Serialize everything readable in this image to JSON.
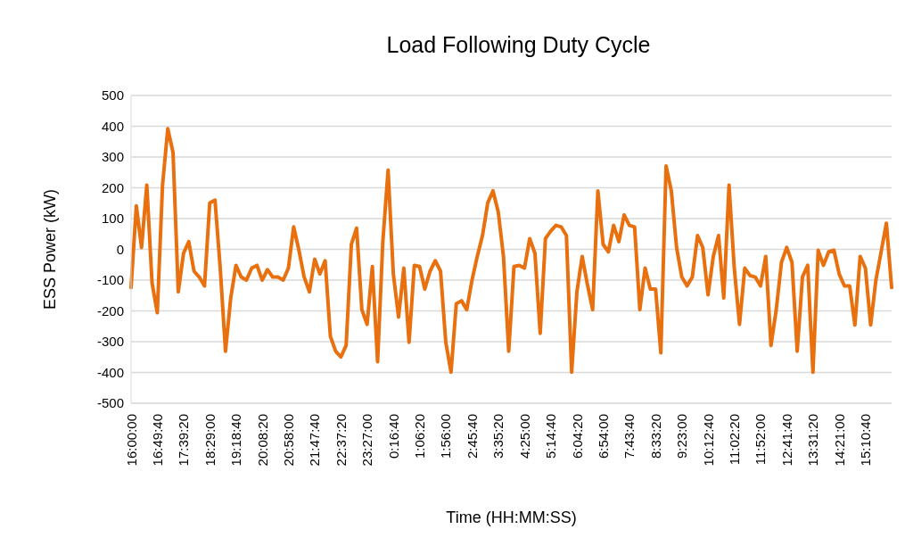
{
  "chart_data": {
    "type": "line",
    "title": "Load Following Duty Cycle",
    "xlabel": "Time (HH:MM:SS)",
    "ylabel": "ESS Power (kW)",
    "categories": [
      "16:00:00",
      null,
      null,
      null,
      null,
      "16:49:40",
      null,
      null,
      null,
      null,
      "17:39:20",
      null,
      null,
      null,
      null,
      "18:29:00",
      null,
      null,
      null,
      null,
      "19:18:40",
      null,
      null,
      null,
      null,
      "20:08:20",
      null,
      null,
      null,
      null,
      "20:58:00",
      null,
      null,
      null,
      null,
      "21:47:40",
      null,
      null,
      null,
      null,
      "22:37:20",
      null,
      null,
      null,
      null,
      "23:27:00",
      null,
      null,
      null,
      null,
      "0:16:40",
      null,
      null,
      null,
      null,
      "1:06:20",
      null,
      null,
      null,
      null,
      "1:56:00",
      null,
      null,
      null,
      null,
      "2:45:40",
      null,
      null,
      null,
      null,
      "3:35:20",
      null,
      null,
      null,
      null,
      "4:25:00",
      null,
      null,
      null,
      null,
      "5:14:40",
      null,
      null,
      null,
      null,
      "6:04:20",
      null,
      null,
      null,
      null,
      "6:54:00",
      null,
      null,
      null,
      null,
      "7:43:40",
      null,
      null,
      null,
      null,
      "8:33:20",
      null,
      null,
      null,
      null,
      "9:23:00",
      null,
      null,
      null,
      null,
      "10:12:40",
      null,
      null,
      null,
      null,
      "11:02:20",
      null,
      null,
      null,
      null,
      "11:52:00",
      null,
      null,
      null,
      null,
      "12:41:40",
      null,
      null,
      null,
      null,
      "13:31:20",
      null,
      null,
      null,
      null,
      "14:21:00",
      null,
      null,
      null,
      null,
      "15:10:40",
      null,
      null,
      null,
      null,
      null
    ],
    "series": [
      {
        "color": "#e8700e",
        "values": [
          -124,
          141,
          6,
          209,
          -109,
          -206,
          209,
          392,
          315,
          -138,
          -13,
          25,
          -71,
          -90,
          -119,
          151,
          160,
          -61,
          -331,
          -158,
          -52,
          -90,
          -100,
          -61,
          -52,
          -100,
          -66,
          -90,
          -90,
          -100,
          -61,
          73,
          -3,
          -90,
          -138,
          -32,
          -80,
          -37,
          -283,
          -331,
          -350,
          -312,
          16,
          69,
          -196,
          -244,
          -56,
          -365,
          25,
          257,
          -80,
          -220,
          -61,
          -302,
          -52,
          -56,
          -129,
          -71,
          -37,
          -71,
          -302,
          -399,
          -177,
          -167,
          -196,
          -100,
          -23,
          45,
          151,
          190,
          122,
          -23,
          -331,
          -56,
          -52,
          -61,
          35,
          -13,
          -273,
          35,
          59,
          78,
          73,
          45,
          -399,
          -138,
          -23,
          -114,
          -196,
          190,
          16,
          -8,
          78,
          25,
          112,
          78,
          73,
          -196,
          -61,
          -129,
          -129,
          -336,
          271,
          190,
          6,
          -90,
          -119,
          -90,
          45,
          6,
          -148,
          -23,
          45,
          -158,
          209,
          -61,
          -244,
          -61,
          -85,
          -90,
          -119,
          -23,
          -312,
          -196,
          -42,
          6,
          -42,
          -331,
          -90,
          -52,
          -399,
          -3,
          -52,
          -8,
          -3,
          -80,
          -119,
          -119,
          -246,
          -23,
          -61,
          -246,
          -100,
          -8,
          85,
          -124
        ]
      }
    ],
    "ylim": [
      -500,
      500
    ],
    "yticks": [
      -500,
      -400,
      -300,
      -200,
      -100,
      0,
      100,
      200,
      300,
      400,
      500
    ],
    "grid": "y"
  }
}
